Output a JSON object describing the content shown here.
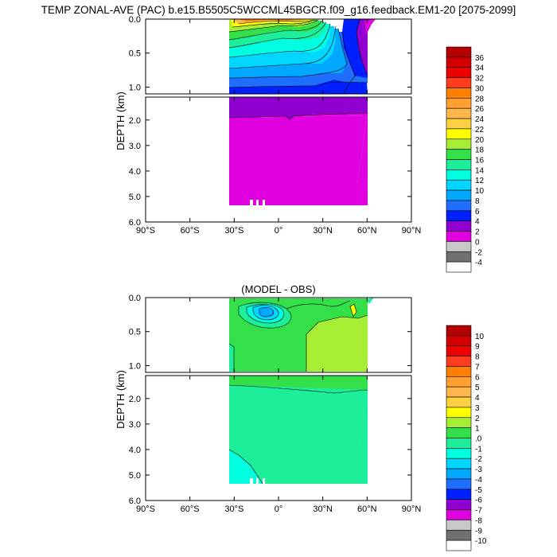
{
  "title": "TEMP ZONAL-AVE (PAC) b.e15.B5505C5WCCML45BGCR.f09_g16.feedback.EM1-20 [2075-2099]",
  "chart_data": [
    {
      "type": "heatmap",
      "title": "",
      "ylabel": "DEPTH (km)",
      "xlabel": "",
      "x_ticks": [
        "90°S",
        "60°S",
        "30°S",
        "0°",
        "30°N",
        "60°N",
        "90°N"
      ],
      "x_values": [
        -90,
        -60,
        -30,
        0,
        30,
        60,
        90
      ],
      "y_ticks_upper": [
        "0.0",
        "0.5",
        "1.0"
      ],
      "y_ticks_lower": [
        "2.0",
        "3.0",
        "4.0",
        "5.0",
        "6.0"
      ],
      "ylim_upper": [
        0,
        1.1
      ],
      "ylim_lower": [
        1.1,
        6.0
      ],
      "data_lat_range": [
        -34,
        62
      ],
      "colorbar_labels": [
        "36",
        "34",
        "32",
        "30",
        "28",
        "26",
        "24",
        "22",
        "20",
        "18",
        "16",
        "14",
        "12",
        "10",
        "8",
        "6",
        "4",
        "2",
        "0",
        "-2",
        "-4"
      ],
      "colorbar_colors": [
        "#b40000",
        "#d20000",
        "#ee0000",
        "#ff3c1e",
        "#ff8000",
        "#ffa030",
        "#ffb74d",
        "#ffd040",
        "#ffff00",
        "#a6ee34",
        "#34e04a",
        "#1cee9a",
        "#00ffe0",
        "#00d6ff",
        "#00a8ff",
        "#1e6eff",
        "#0020ff",
        "#9000d0",
        "#e000e0",
        "#c8c8c8",
        "#707070",
        "#ffffff"
      ]
    },
    {
      "type": "heatmap",
      "title": "(MODEL - OBS)",
      "ylabel": "DEPTH (km)",
      "xlabel": "",
      "x_ticks": [
        "90°S",
        "60°S",
        "30°S",
        "0°",
        "30°N",
        "60°N",
        "90°N"
      ],
      "x_values": [
        -90,
        -60,
        -30,
        0,
        30,
        60,
        90
      ],
      "y_ticks_upper": [
        "0.0",
        "0.5",
        "1.0"
      ],
      "y_ticks_lower": [
        "2.0",
        "3.0",
        "4.0",
        "5.0",
        "6.0"
      ],
      "ylim_upper": [
        0,
        1.1
      ],
      "ylim_lower": [
        1.1,
        6.0
      ],
      "data_lat_range": [
        -34,
        62
      ],
      "colorbar_labels": [
        "10",
        "9",
        "8",
        "7",
        "6",
        "5",
        "4",
        "3",
        "2",
        "1",
        ".0",
        "-1",
        "-2",
        "-3",
        "-4",
        "-5",
        "-6",
        "-7",
        "-8",
        "-9",
        "-10"
      ],
      "colorbar_colors": [
        "#b40000",
        "#d20000",
        "#ee0000",
        "#ff3c1e",
        "#ff8000",
        "#ffa030",
        "#ffb74d",
        "#ffd040",
        "#ffff00",
        "#a6ee34",
        "#34e04a",
        "#1cee9a",
        "#00ffe0",
        "#00d6ff",
        "#00a8ff",
        "#1e6eff",
        "#0020ff",
        "#9000d0",
        "#e000e0",
        "#c8c8c8",
        "#707070",
        "#ffffff"
      ]
    }
  ]
}
